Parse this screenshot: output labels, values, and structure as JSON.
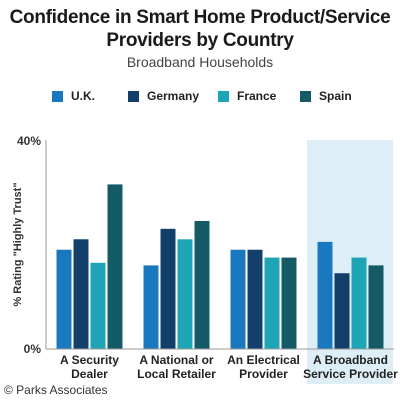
{
  "title_lines": [
    "Confidence in Smart Home Product/Service",
    "Providers by Country"
  ],
  "subtitle": "Broadband Households",
  "footer": "© Parks Associates",
  "colors": {
    "highlight": "#ddeef6"
  },
  "chart_data": {
    "type": "bar",
    "title": "Confidence in Smart Home Product/Service Providers by Country",
    "subtitle": "Broadband Households",
    "ylabel": "% Rating \"Highly Trust\"",
    "ylim": [
      0,
      40
    ],
    "yticks": [
      "0%",
      "40%"
    ],
    "grid": false,
    "legend_position": "top",
    "highlighted_category": "A Broadband Service Provider",
    "categories": [
      {
        "lines": [
          "A Security",
          "Dealer"
        ]
      },
      {
        "lines": [
          "A National or",
          "Local Retailer"
        ]
      },
      {
        "lines": [
          "An Electrical",
          "Provider"
        ]
      },
      {
        "lines": [
          "A Broadband",
          "Service Provider"
        ]
      }
    ],
    "series": [
      {
        "name": "U.K.",
        "color": "#1a78be",
        "values": [
          19,
          16,
          19,
          20.5
        ]
      },
      {
        "name": "Germany",
        "color": "#13406b",
        "values": [
          21,
          23,
          19,
          14.5
        ]
      },
      {
        "name": "France",
        "color": "#1ea5b5",
        "values": [
          16.5,
          21,
          17.5,
          17.5
        ]
      },
      {
        "name": "Spain",
        "color": "#145a67",
        "values": [
          31.5,
          24.5,
          17.5,
          16
        ]
      }
    ]
  }
}
